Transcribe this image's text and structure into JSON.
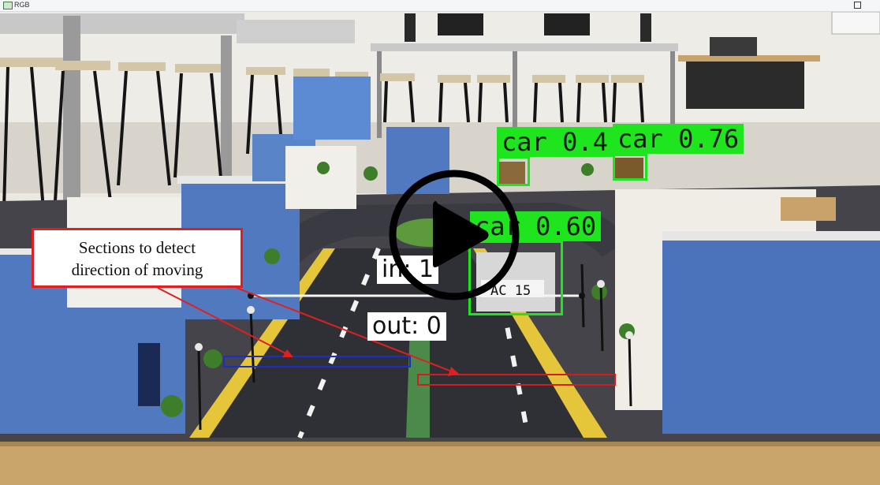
{
  "window": {
    "title": "RGB"
  },
  "detections": [
    {
      "label": "car 0.4"
    },
    {
      "label": "car 0.76"
    },
    {
      "label": "car 0.60"
    }
  ],
  "plate": "AC 15",
  "counters": {
    "in": "in: 1",
    "out": "out: 0"
  },
  "annotation": {
    "line1": "Sections to detect",
    "line2": "direction of moving"
  },
  "colors": {
    "detection": "#1ee51e",
    "annotation": "#e02020",
    "section_left": "#1b2ec8",
    "section_right": "#d41c1c"
  },
  "play_button": {
    "icon": "play-icon"
  }
}
